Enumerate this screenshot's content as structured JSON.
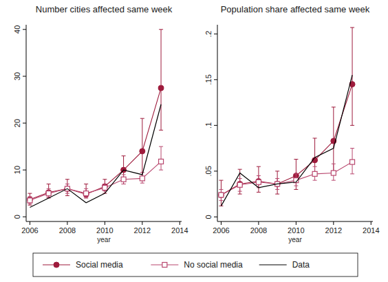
{
  "chart_data": [
    {
      "type": "line",
      "title": "Number cities affected same week",
      "x_label": "year",
      "x": [
        2006,
        2007,
        2008,
        2009,
        2010,
        2011,
        2012,
        2013
      ],
      "xlim": [
        2005.8,
        2014.1
      ],
      "xticks": [
        2006,
        2008,
        2010,
        2012,
        2014
      ],
      "ylim": [
        -1,
        41
      ],
      "yticks": [
        0,
        10,
        20,
        30,
        40
      ],
      "grid": false,
      "legend": "bottom",
      "series": [
        {
          "name": "Social media",
          "color": "#9e1b3c",
          "marker": "circle",
          "line_style": "solid",
          "values": [
            3.7,
            5.2,
            6,
            4.8,
            6.5,
            10,
            14,
            27.5
          ],
          "lower": [
            2.5,
            4,
            4.5,
            4,
            5,
            7,
            8,
            18.5
          ],
          "upper": [
            5,
            7,
            8,
            7,
            8,
            13,
            21,
            40
          ]
        },
        {
          "name": "No social media",
          "color": "#b8476e",
          "marker": "square-open",
          "line_style": "solid",
          "values": [
            3.5,
            5,
            6,
            5,
            6.2,
            8,
            8.2,
            11.8
          ],
          "lower": [
            2.8,
            4.2,
            5,
            4.2,
            5.5,
            7,
            7.2,
            10
          ],
          "upper": [
            4.3,
            6,
            7,
            6,
            7,
            9,
            9.5,
            15
          ]
        },
        {
          "name": "Data",
          "color": "#000000",
          "marker": "none",
          "line_style": "solid",
          "values": [
            2,
            4,
            6,
            3,
            5,
            10,
            9,
            24
          ]
        }
      ]
    },
    {
      "type": "line",
      "title": "Population share affected same week",
      "x_label": "year",
      "x": [
        2006,
        2007,
        2008,
        2009,
        2010,
        2011,
        2012,
        2013
      ],
      "xlim": [
        2005.8,
        2014.1
      ],
      "xticks": [
        2006,
        2008,
        2010,
        2012,
        2014
      ],
      "ylim": [
        -0.005,
        0.21
      ],
      "yticks": [
        0,
        {
          "value": 0.05,
          "label": ".05"
        },
        {
          "value": 0.1,
          "label": ".1"
        },
        {
          "value": 0.15,
          "label": ".15"
        },
        {
          "value": 0.2,
          "label": ".2"
        }
      ],
      "grid": false,
      "series": [
        {
          "name": "Social media",
          "color": "#9e1b3c",
          "marker": "circle",
          "line_style": "solid",
          "values": [
            0.024,
            0.036,
            0.039,
            0.036,
            0.045,
            0.062,
            0.083,
            0.145
          ],
          "lower": [
            0.012,
            0.025,
            0.027,
            0.025,
            0.03,
            0.045,
            0.05,
            0.1
          ],
          "upper": [
            0.04,
            0.052,
            0.055,
            0.05,
            0.063,
            0.086,
            0.12,
            0.207
          ]
        },
        {
          "name": "No social media",
          "color": "#b8476e",
          "marker": "square-open",
          "line_style": "solid",
          "values": [
            0.024,
            0.035,
            0.038,
            0.036,
            0.04,
            0.047,
            0.048,
            0.06
          ],
          "lower": [
            0.018,
            0.028,
            0.032,
            0.03,
            0.034,
            0.04,
            0.04,
            0.047
          ],
          "upper": [
            0.03,
            0.042,
            0.045,
            0.042,
            0.047,
            0.055,
            0.058,
            0.075
          ]
        },
        {
          "name": "Data",
          "color": "#000000",
          "marker": "none",
          "line_style": "solid",
          "values": [
            0.012,
            0.048,
            0.032,
            0.036,
            0.038,
            0.065,
            0.075,
            0.155
          ]
        }
      ]
    }
  ]
}
